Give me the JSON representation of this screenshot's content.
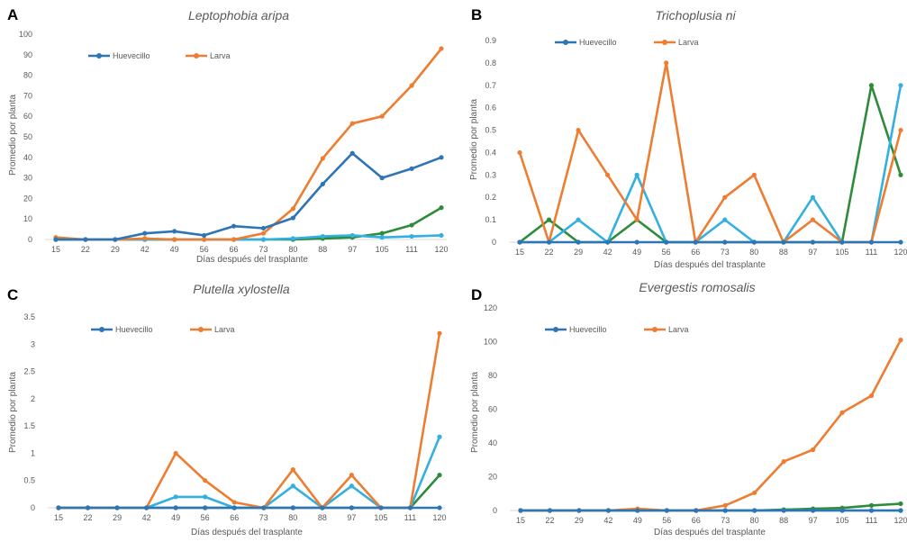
{
  "colors": {
    "huevecillo": "#2e75b6",
    "larva": "#ed7d31",
    "green": "#2e8b3a",
    "cyan": "#33b0e0",
    "axis": "#d9d9d9",
    "text": "#595959"
  },
  "chart_data": [
    {
      "type": "line",
      "panel": "A",
      "title": "Leptophobia aripa",
      "xlabel": "Días después del trasplante",
      "ylabel": "Promedio por planta",
      "categories": [
        "15",
        "22",
        "29",
        "42",
        "49",
        "56",
        "66",
        "73",
        "80",
        "88",
        "97",
        "105",
        "111",
        "120"
      ],
      "ylim": [
        0,
        100
      ],
      "yticks": [
        "0",
        "10",
        "20",
        "30",
        "40",
        "50",
        "60",
        "70",
        "80",
        "90",
        "100"
      ],
      "legend": [
        "Huevecillo",
        "Larva"
      ],
      "legend_position": "top-left",
      "series": [
        {
          "name": "Huevecillo",
          "color": "#2e75b6",
          "values": [
            0,
            0,
            0,
            3,
            4,
            2,
            6.5,
            5.5,
            10.5,
            27,
            42,
            30,
            34.5,
            40
          ]
        },
        {
          "name": "Larva",
          "color": "#ed7d31",
          "values": [
            1,
            0,
            0,
            0.5,
            0,
            0,
            0,
            3,
            15,
            39.5,
            56.5,
            60,
            75,
            93
          ]
        },
        {
          "color": "#2e8b3a",
          "values": [
            0,
            0,
            0,
            0,
            0,
            0,
            0,
            0,
            0,
            0.5,
            1,
            3,
            7,
            15.5
          ]
        },
        {
          "color": "#33b0e0",
          "values": [
            0,
            0,
            0,
            0,
            0,
            0,
            0,
            0,
            0.5,
            1.5,
            2,
            1,
            1.5,
            2
          ]
        }
      ]
    },
    {
      "type": "line",
      "panel": "B",
      "title": "Trichoplusia ni",
      "xlabel": "Días después del trasplante",
      "ylabel": "Promedio por planta",
      "categories": [
        "15",
        "22",
        "29",
        "42",
        "49",
        "56",
        "66",
        "73",
        "80",
        "88",
        "97",
        "105",
        "111",
        "120"
      ],
      "ylim": [
        0,
        0.9
      ],
      "yticks": [
        "0",
        "0.1",
        "0.2",
        "0.3",
        "0.4",
        "0.5",
        "0.6",
        "0.7",
        "0.8",
        "0.9"
      ],
      "legend": [
        "Huevecillo",
        "Larva"
      ],
      "legend_position": "top-left",
      "series": [
        {
          "name": "Huevecillo",
          "color": "#2e75b6",
          "values": [
            0,
            0,
            0,
            0,
            0,
            0,
            0,
            0,
            0,
            0,
            0,
            0,
            0,
            0
          ]
        },
        {
          "name": "Larva",
          "color": "#ed7d31",
          "values": [
            0.4,
            0,
            0.5,
            0.3,
            0.1,
            0.8,
            0,
            0.2,
            0.3,
            0,
            0.1,
            0,
            0,
            0.5
          ]
        },
        {
          "color": "#2e8b3a",
          "values": [
            0,
            0.1,
            0,
            0,
            0.1,
            0,
            0,
            0,
            0,
            0,
            0,
            0,
            0.7,
            0.3
          ]
        },
        {
          "color": "#33b0e0",
          "values": [
            0,
            0,
            0.1,
            0,
            0.3,
            0,
            0,
            0.1,
            0,
            0,
            0.2,
            0,
            0,
            0.7
          ]
        }
      ]
    },
    {
      "type": "line",
      "panel": "C",
      "title": "Plutella xylostella",
      "xlabel": "Días después del trasplante",
      "ylabel": "Promedio por planta",
      "categories": [
        "15",
        "22",
        "29",
        "42",
        "49",
        "56",
        "66",
        "73",
        "80",
        "88",
        "97",
        "105",
        "111",
        "120"
      ],
      "ylim": [
        0,
        3.5
      ],
      "yticks": [
        "0",
        "0.5",
        "1",
        "1.5",
        "2",
        "2.5",
        "3",
        "3.5"
      ],
      "legend": [
        "Huevecillo",
        "Larva"
      ],
      "legend_position": "top-left",
      "series": [
        {
          "name": "Huevecillo",
          "color": "#2e75b6",
          "values": [
            0,
            0,
            0,
            0,
            0,
            0,
            0,
            0,
            0,
            0,
            0,
            0,
            0,
            0
          ]
        },
        {
          "name": "Larva",
          "color": "#ed7d31",
          "values": [
            0,
            0,
            0,
            0,
            1.0,
            0.5,
            0.1,
            0,
            0.7,
            0,
            0.6,
            0,
            0,
            3.2
          ]
        },
        {
          "color": "#2e8b3a",
          "values": [
            0,
            0,
            0,
            0,
            0,
            0,
            0,
            0,
            0,
            0,
            0,
            0,
            0,
            0.6
          ]
        },
        {
          "color": "#33b0e0",
          "values": [
            0,
            0,
            0,
            0,
            0.2,
            0.2,
            0,
            0,
            0.4,
            0,
            0.4,
            0,
            0,
            1.3
          ]
        }
      ]
    },
    {
      "type": "line",
      "panel": "D",
      "title": "Evergestis romosalis",
      "xlabel": "Días después del trasplante",
      "ylabel": "Promedio por planta",
      "categories": [
        "15",
        "22",
        "29",
        "42",
        "49",
        "56",
        "66",
        "73",
        "80",
        "88",
        "97",
        "105",
        "111",
        "120"
      ],
      "ylim": [
        0,
        120
      ],
      "yticks": [
        "0",
        "20",
        "40",
        "60",
        "80",
        "100",
        "120"
      ],
      "legend": [
        "Huevecillo",
        "Larva"
      ],
      "legend_position": "top-left",
      "series": [
        {
          "name": "Huevecillo",
          "color": "#2e75b6",
          "values": [
            0,
            0,
            0,
            0,
            0,
            0,
            0,
            0,
            0,
            0,
            0,
            0,
            0,
            0
          ]
        },
        {
          "name": "Larva",
          "color": "#ed7d31",
          "values": [
            0,
            0,
            0,
            0,
            1,
            0,
            0,
            3,
            10.5,
            29,
            36,
            58,
            68,
            101
          ]
        },
        {
          "color": "#2e8b3a",
          "values": [
            0,
            0,
            0,
            0,
            0,
            0,
            0,
            0,
            0,
            0.5,
            1,
            1.5,
            3,
            4
          ]
        },
        {
          "color": "#33b0e0",
          "values": [
            0,
            0,
            0,
            0,
            0,
            0,
            0,
            0,
            0,
            0,
            0,
            0,
            0,
            0
          ]
        }
      ]
    }
  ]
}
